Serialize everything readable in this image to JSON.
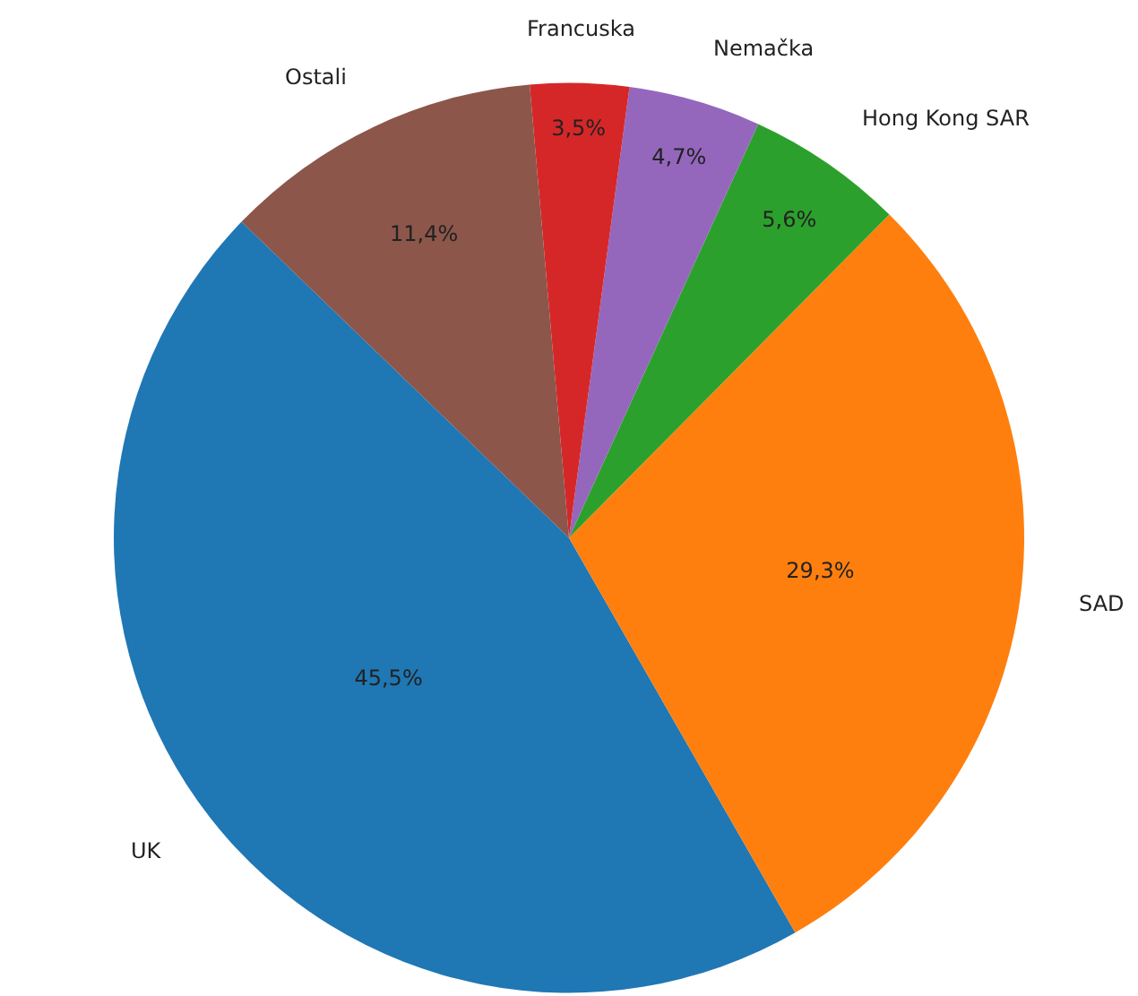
{
  "chart_data": {
    "type": "pie",
    "categories": [
      "UK",
      "SAD",
      "Hong Kong SAR",
      "Nemačka",
      "Francuska",
      "Ostali"
    ],
    "values": [
      45.5,
      29.3,
      5.6,
      4.7,
      3.5,
      11.4
    ],
    "colors": [
      "#1f77b4",
      "#ff7f0e",
      "#2ca02c",
      "#9467bd",
      "#d62728",
      "#8c564b"
    ],
    "value_labels": [
      "45,5%",
      "29,3%",
      "5,6%",
      "4,7%",
      "3,5%",
      "11,4%"
    ],
    "legend": false
  }
}
